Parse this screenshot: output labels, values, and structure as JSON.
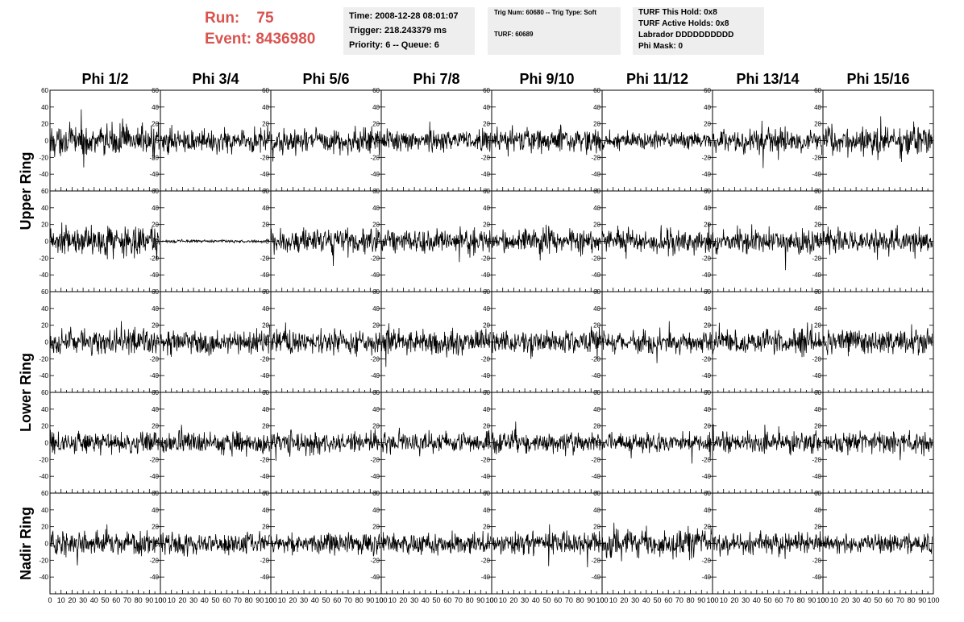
{
  "header": {
    "run_label": "Run:",
    "run_value": "75",
    "event_label": "Event:",
    "event_value": "8436980",
    "time": "Time: 2008-12-28 08:01:07",
    "trigger": "Trigger: 218.243379 ms",
    "priority": "Priority: 6 -- Queue: 6",
    "trig_num": "Trig Num: 60680 -- Trig Type: Soft",
    "turf": "TURF: 60689",
    "turf_this_hold": "TURF This Hold: 0x8",
    "turf_active_holds": "TURF Active Holds: 0x8",
    "labrador": "Labrador DDDDDDDDDD",
    "phi_mask": "Phi Mask: 0"
  },
  "chart_data": {
    "type": "line",
    "columns": [
      "Phi 1/2",
      "Phi 3/4",
      "Phi 5/6",
      "Phi 7/8",
      "Phi 9/10",
      "Phi 11/12",
      "Phi 13/14",
      "Phi 15/16"
    ],
    "row_labels": [
      {
        "label": "Upper Ring",
        "rows": [
          0,
          1
        ]
      },
      {
        "label": "Lower Ring",
        "rows": [
          2,
          3
        ]
      },
      {
        "label": "Nadir Ring",
        "rows": [
          4
        ]
      }
    ],
    "xlim": [
      0,
      100
    ],
    "ylim": [
      -60,
      60
    ],
    "x_ticks": [
      "0",
      "10",
      "20",
      "30",
      "40",
      "50",
      "60",
      "70",
      "80",
      "90",
      "100"
    ],
    "y_ticks": [
      "-60",
      "-40",
      "-20",
      "0",
      "20",
      "40",
      "60"
    ],
    "y_tick_labels_shown": [
      "-40",
      "-20",
      "0",
      "20",
      "40",
      "60"
    ],
    "samples_per_trace": 260,
    "trace_amplitude": [
      [
        20,
        16,
        16,
        14,
        16,
        12,
        16,
        18
      ],
      [
        20,
        2,
        16,
        16,
        16,
        16,
        16,
        16
      ],
      [
        16,
        16,
        16,
        16,
        16,
        14,
        16,
        16
      ],
      [
        14,
        14,
        14,
        14,
        14,
        12,
        14,
        14
      ],
      [
        16,
        14,
        14,
        14,
        14,
        18,
        14,
        14
      ]
    ],
    "line_color": "#000000",
    "grid": false
  }
}
